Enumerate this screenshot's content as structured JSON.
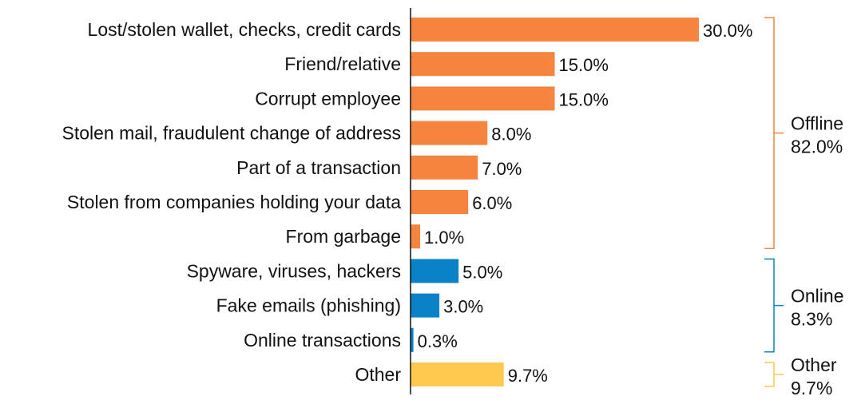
{
  "chart_data": {
    "type": "bar",
    "orientation": "horizontal",
    "categories": [
      "Lost/stolen wallet, checks, credit cards",
      "Friend/relative",
      "Corrupt employee",
      "Stolen mail, fraudulent change of address",
      "Part of a transaction",
      "Stolen from companies holding your data",
      "From garbage",
      "Spyware, viruses, hackers",
      "Fake emails (phishing)",
      "Online transactions",
      "Other"
    ],
    "values": [
      30.0,
      15.0,
      15.0,
      8.0,
      7.0,
      6.0,
      1.0,
      5.0,
      3.0,
      0.3,
      9.7
    ],
    "value_labels": [
      "30.0%",
      "15.0%",
      "15.0%",
      "8.0%",
      "7.0%",
      "6.0%",
      "1.0%",
      "5.0%",
      "3.0%",
      "0.3%",
      "9.7%"
    ],
    "bar_groups": [
      "offline",
      "offline",
      "offline",
      "offline",
      "offline",
      "offline",
      "offline",
      "online",
      "online",
      "online",
      "other"
    ],
    "xlim": [
      0,
      30
    ],
    "grid": false,
    "title": "",
    "xlabel": "",
    "ylabel": "",
    "groups": [
      {
        "id": "offline",
        "name": "Offline",
        "total_label": "82.0%",
        "color": "#F5843F",
        "first": 0,
        "last": 6
      },
      {
        "id": "online",
        "name": "Online",
        "total_label": "8.3%",
        "color": "#0A82C8",
        "first": 7,
        "last": 9
      },
      {
        "id": "other",
        "name": "Other",
        "total_label": "9.7%",
        "color": "#FFC94F",
        "first": 10,
        "last": 10
      }
    ]
  }
}
